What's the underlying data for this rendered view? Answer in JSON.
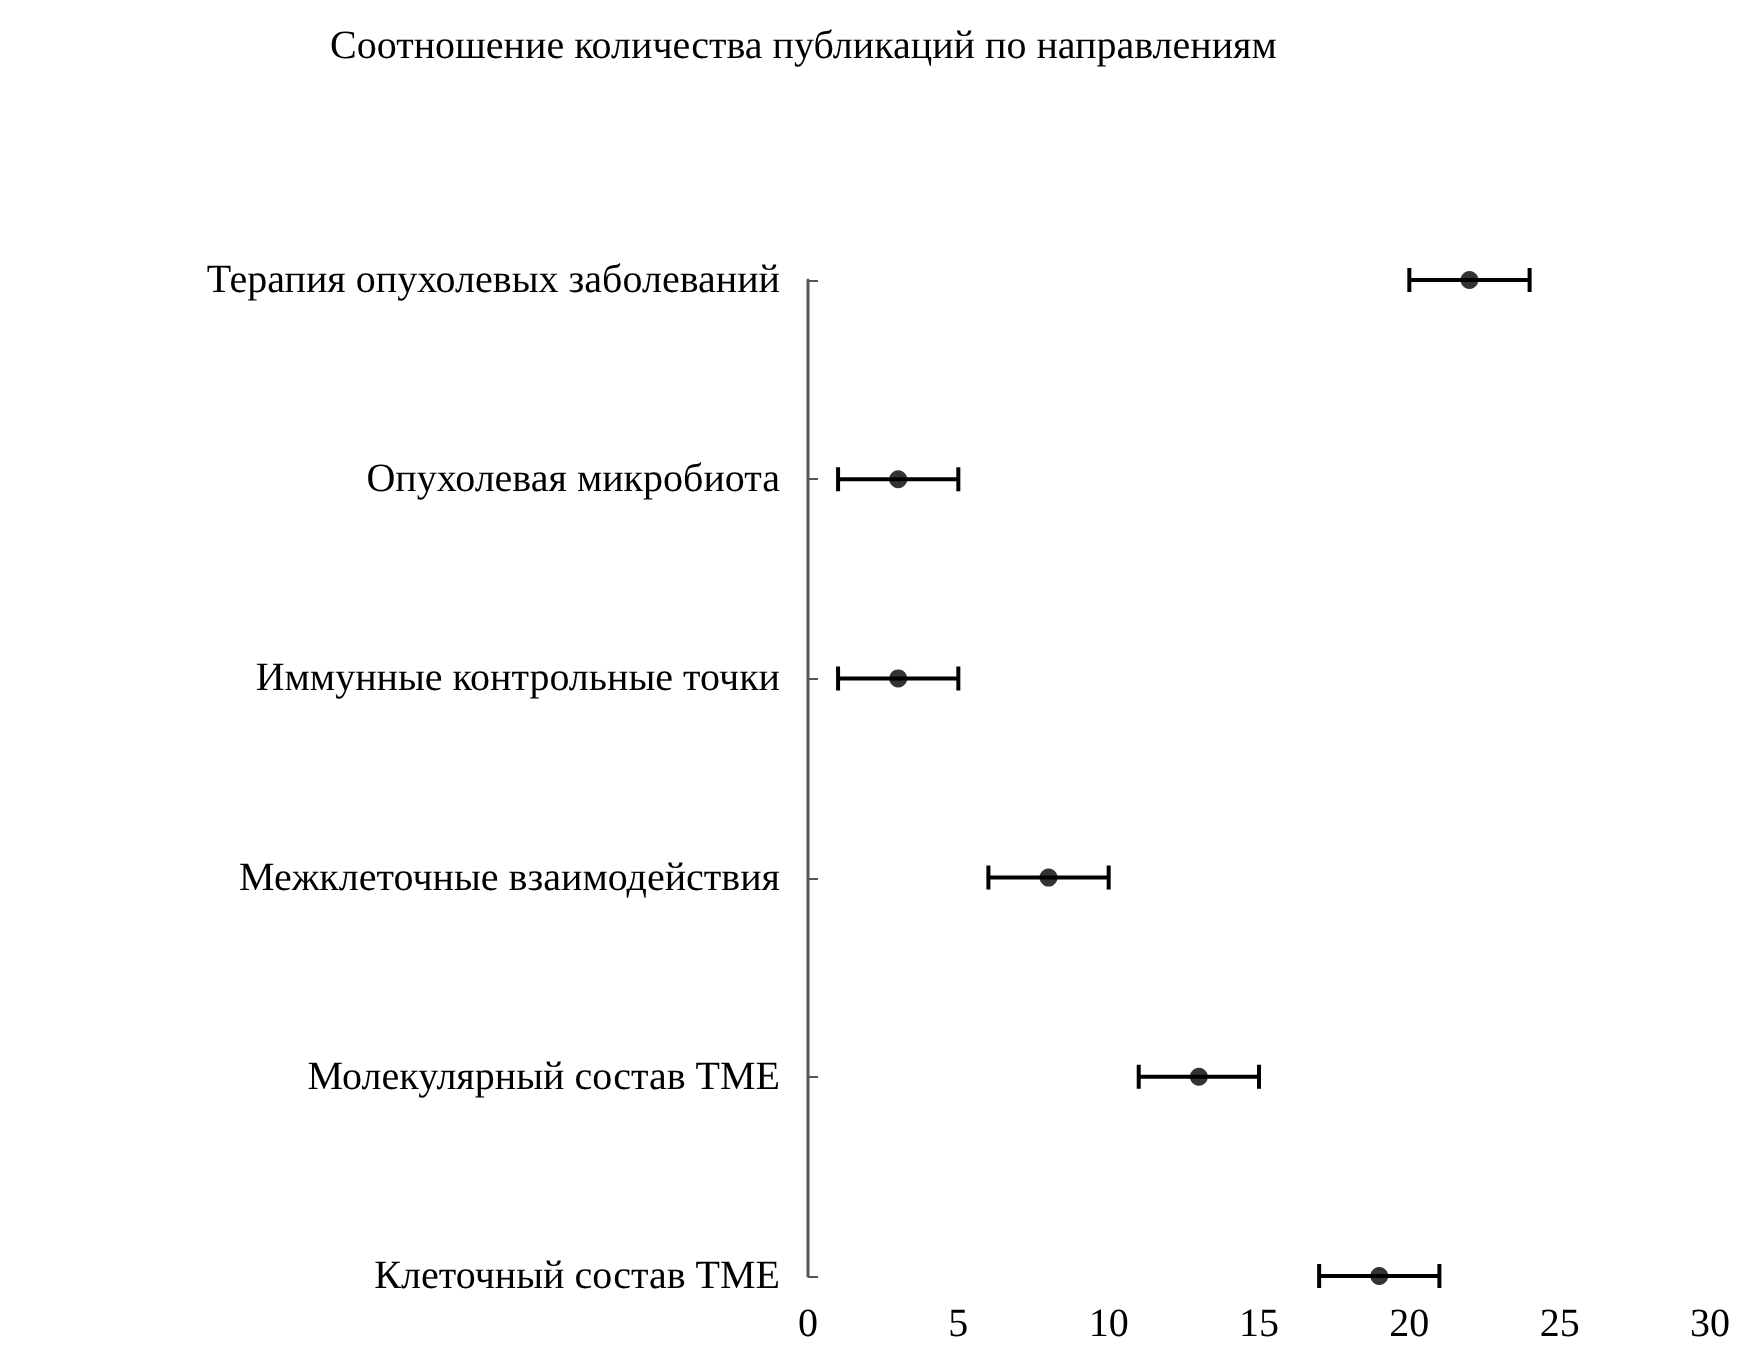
{
  "chart_data": {
    "type": "scatter",
    "title": "Соотношение количества публикаций по направлениям",
    "orientation": "horizontal",
    "categories": [
      "Терапия опухолевых заболеваний",
      "Опухолевая микробиота",
      "Иммунные контрольные точки",
      "Межклеточные взаимодействия",
      "Молекулярный состав TME",
      "Клеточный состав TME"
    ],
    "values": [
      22,
      3,
      3,
      8,
      13,
      19
    ],
    "errors": [
      2,
      2,
      2,
      2,
      2,
      2
    ],
    "color": "#000000",
    "marker": "circle",
    "grid": false,
    "xlim": [
      0,
      30
    ],
    "xticks": [
      0,
      5,
      10,
      15,
      20,
      25,
      30
    ]
  }
}
